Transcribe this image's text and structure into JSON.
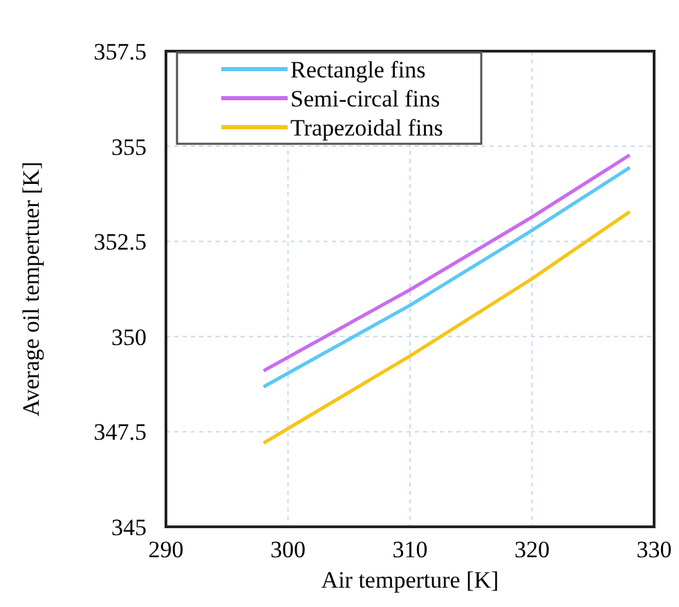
{
  "chart_data": {
    "type": "line",
    "xlabel": "Air temperture [K]",
    "ylabel": "Average oil tempertuer [K]",
    "xlim": [
      290,
      330
    ],
    "xticks": [
      290,
      300,
      310,
      320,
      330
    ],
    "ylim": [
      345,
      357.5
    ],
    "yticks": [
      345,
      347.5,
      350,
      352.5,
      355,
      357.5
    ],
    "grid": true,
    "legend": "top left",
    "line_style": "solid",
    "marker": "none",
    "series": [
      {
        "name": "Rectangle fins",
        "color": "#5bc8f5",
        "x": [
          298,
          310,
          320,
          328
        ],
        "values": [
          348.68,
          350.82,
          352.79,
          354.44
        ]
      },
      {
        "name": "Semi-circal fins",
        "color": "#c86cf0",
        "x": [
          298,
          310,
          320,
          328
        ],
        "values": [
          349.1,
          351.23,
          353.14,
          354.77
        ]
      },
      {
        "name": "Trapezoidal fins",
        "color": "#f5c518",
        "x": [
          298,
          310,
          320,
          328
        ],
        "values": [
          347.2,
          349.49,
          351.52,
          353.28
        ]
      }
    ]
  }
}
